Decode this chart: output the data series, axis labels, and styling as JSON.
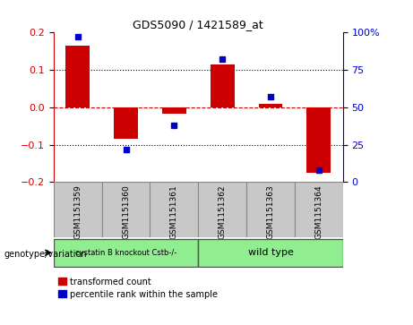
{
  "title": "GDS5090 / 1421589_at",
  "samples": [
    "GSM1151359",
    "GSM1151360",
    "GSM1151361",
    "GSM1151362",
    "GSM1151363",
    "GSM1151364"
  ],
  "red_values": [
    0.165,
    -0.085,
    -0.018,
    0.115,
    0.01,
    -0.175
  ],
  "blue_values": [
    97,
    22,
    38,
    82,
    57,
    8
  ],
  "ylim_left": [
    -0.2,
    0.2
  ],
  "ylim_right": [
    0,
    100
  ],
  "yticks_left": [
    -0.2,
    -0.1,
    0.0,
    0.1,
    0.2
  ],
  "yticks_right": [
    0,
    25,
    50,
    75,
    100
  ],
  "group1_label": "cystatin B knockout Cstb-/-",
  "group2_label": "wild type",
  "group1_color": "#90EE90",
  "group2_color": "#90EE90",
  "group_box_color": "#c8c8c8",
  "red_color": "#cc0000",
  "blue_color": "#0000cc",
  "zero_line_color": "#cc0000",
  "grid_color": "#000000",
  "bar_width": 0.5,
  "legend_red": "transformed count",
  "legend_blue": "percentile rank within the sample"
}
